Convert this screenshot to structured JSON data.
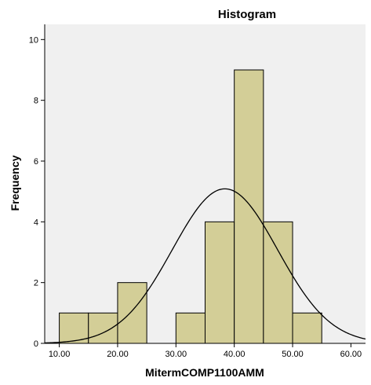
{
  "chart_data": {
    "type": "bar",
    "title": "Histogram",
    "xlabel": "MitermCOMP1100AMM",
    "ylabel": "Frequency",
    "xlim": [
      7.5,
      62.5
    ],
    "ylim": [
      0,
      10.5
    ],
    "grid": false,
    "bins": [
      {
        "from": 10,
        "to": 15,
        "count": 1
      },
      {
        "from": 15,
        "to": 20,
        "count": 1
      },
      {
        "from": 20,
        "to": 25,
        "count": 2
      },
      {
        "from": 25,
        "to": 30,
        "count": 0
      },
      {
        "from": 30,
        "to": 35,
        "count": 1
      },
      {
        "from": 35,
        "to": 40,
        "count": 4
      },
      {
        "from": 40,
        "to": 45,
        "count": 9
      },
      {
        "from": 45,
        "to": 50,
        "count": 4
      },
      {
        "from": 50,
        "to": 55,
        "count": 1
      }
    ],
    "x_ticks": [
      {
        "value": 10,
        "label": "10.00"
      },
      {
        "value": 20,
        "label": "20.00"
      },
      {
        "value": 30,
        "label": "30.00"
      },
      {
        "value": 40,
        "label": "40.00"
      },
      {
        "value": 50,
        "label": "50.00"
      },
      {
        "value": 60,
        "label": "60.00"
      }
    ],
    "y_ticks": [
      {
        "value": 0,
        "label": "0"
      },
      {
        "value": 2,
        "label": "2"
      },
      {
        "value": 4,
        "label": "4"
      },
      {
        "value": 6,
        "label": "6"
      },
      {
        "value": 8,
        "label": "8"
      },
      {
        "value": 10,
        "label": "10"
      }
    ],
    "normal_curve": {
      "mean": 38.4,
      "sd": 9.02,
      "n": 23,
      "bin_width": 5
    },
    "colors": {
      "plot_background": "#f0f0f0",
      "bar_fill": "#d3ce97",
      "bar_stroke": "#000000",
      "curve": "#000000"
    }
  }
}
